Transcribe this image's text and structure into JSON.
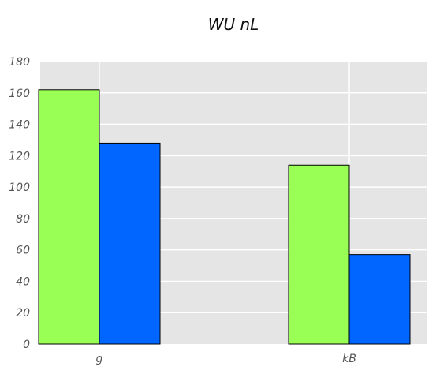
{
  "chart_data": {
    "type": "bar",
    "title": "WU nL",
    "xlabel": "",
    "ylabel": "",
    "categories": [
      "g",
      "kB"
    ],
    "series": [
      {
        "values": [
          162,
          114
        ],
        "color": "#99ff55"
      },
      {
        "values": [
          128,
          57
        ],
        "color": "#0066ff"
      }
    ],
    "ylim": [
      0,
      180
    ],
    "yticks": [
      0,
      20,
      40,
      60,
      80,
      100,
      120,
      140,
      160,
      180
    ],
    "grid": true,
    "legend": "none",
    "background": "#e5e5e5",
    "gridline_color": "#ffffff",
    "bar_edge_color": "#000000"
  }
}
